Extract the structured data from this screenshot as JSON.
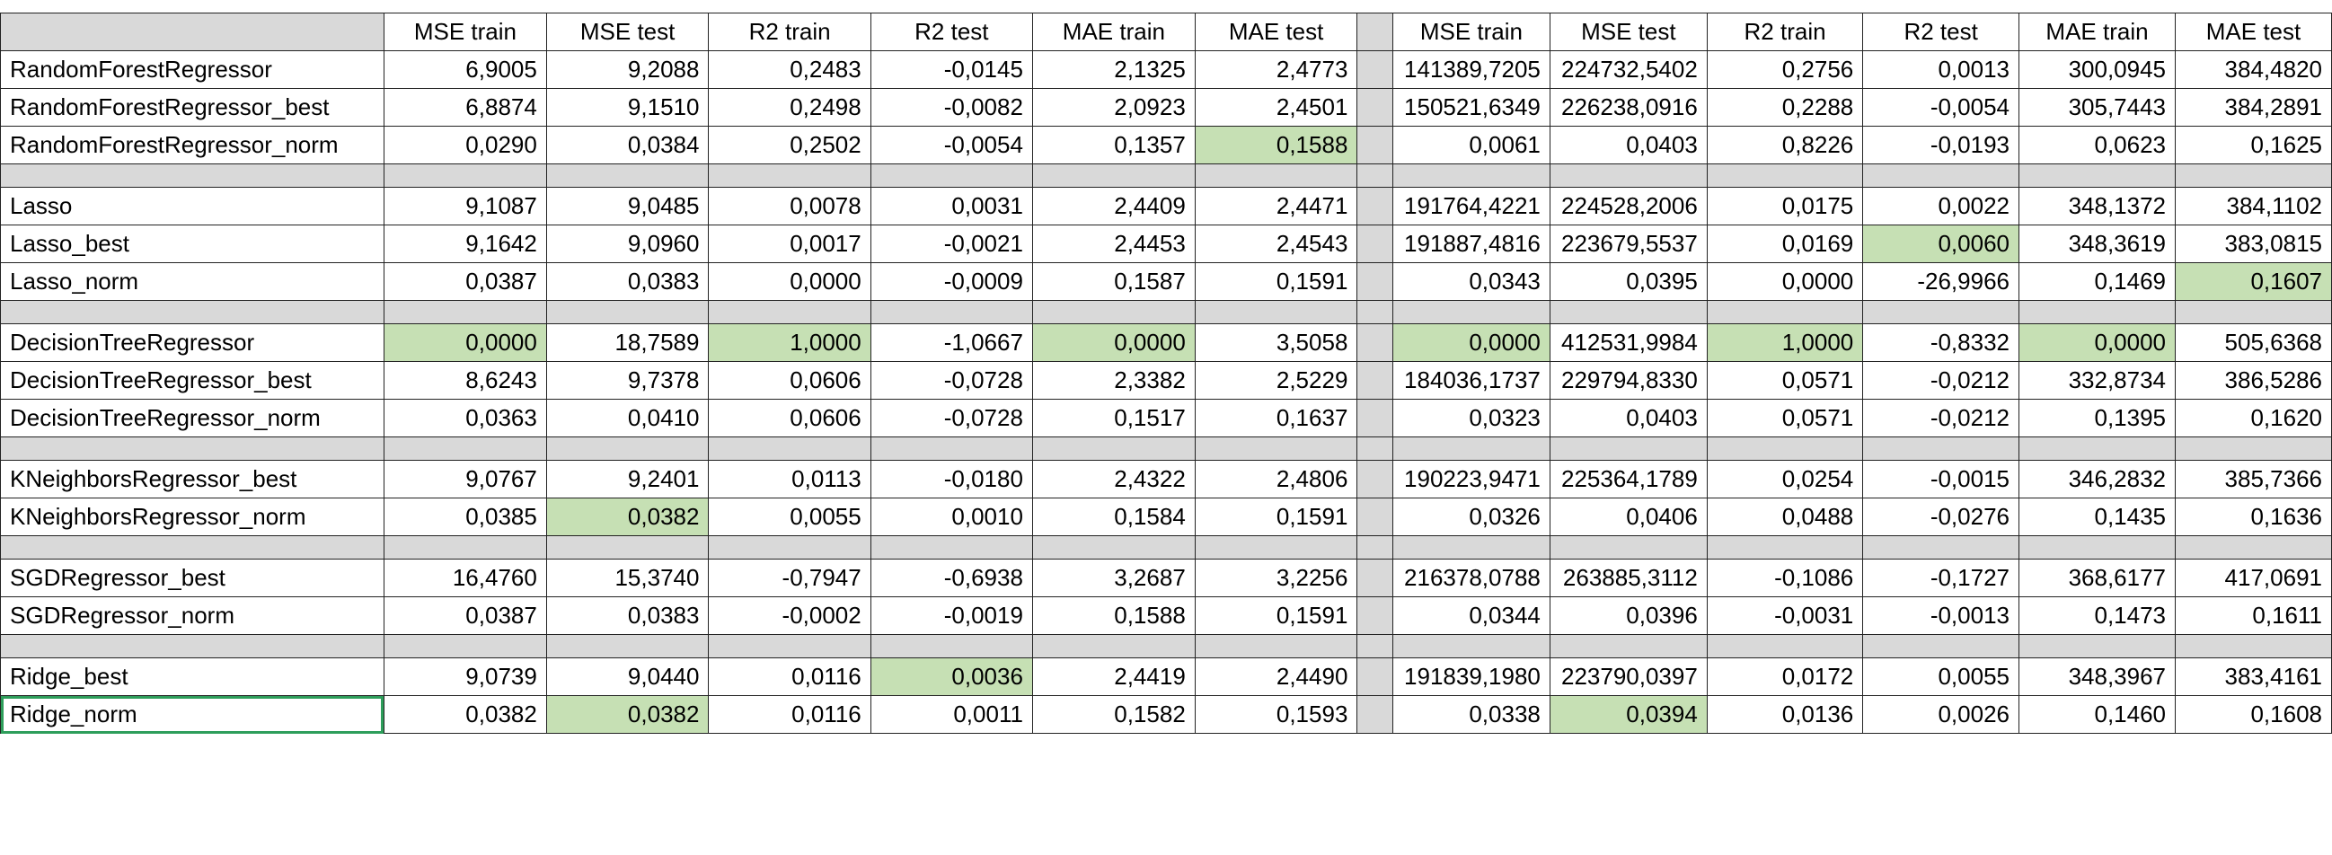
{
  "headers": {
    "left": [
      "MSE train",
      "MSE test",
      "R2 train",
      "R2 test",
      "MAE train",
      "MAE test"
    ],
    "right": [
      "MSE train",
      "MSE test",
      "R2 train",
      "R2 test",
      "MAE train",
      "MAE test"
    ]
  },
  "colors": {
    "highlight": "#c6e0b4",
    "separator": "#d9d9d9",
    "selection": "#2e9e5b"
  },
  "rows": [
    {
      "name": "RandomForestRegressor",
      "left": [
        "6,9005",
        "9,2088",
        "0,2483",
        "-0,0145",
        "2,1325",
        "2,4773"
      ],
      "right": [
        "141389,7205",
        "224732,5402",
        "0,2756",
        "0,0013",
        "300,0945",
        "384,4820"
      ],
      "hl_left": [],
      "hl_right": []
    },
    {
      "name": "RandomForestRegressor_best",
      "left": [
        "6,8874",
        "9,1510",
        "0,2498",
        "-0,0082",
        "2,0923",
        "2,4501"
      ],
      "right": [
        "150521,6349",
        "226238,0916",
        "0,2288",
        "-0,0054",
        "305,7443",
        "384,2891"
      ],
      "hl_left": [],
      "hl_right": []
    },
    {
      "name": "RandomForestRegressor_norm",
      "left": [
        "0,0290",
        "0,0384",
        "0,2502",
        "-0,0054",
        "0,1357",
        "0,1588"
      ],
      "right": [
        "0,0061",
        "0,0403",
        "0,8226",
        "-0,0193",
        "0,0623",
        "0,1625"
      ],
      "hl_left": [
        5
      ],
      "hl_right": []
    },
    {
      "separator": true
    },
    {
      "name": "Lasso",
      "left": [
        "9,1087",
        "9,0485",
        "0,0078",
        "0,0031",
        "2,4409",
        "2,4471"
      ],
      "right": [
        "191764,4221",
        "224528,2006",
        "0,0175",
        "0,0022",
        "348,1372",
        "384,1102"
      ],
      "hl_left": [],
      "hl_right": []
    },
    {
      "name": "Lasso_best",
      "left": [
        "9,1642",
        "9,0960",
        "0,0017",
        "-0,0021",
        "2,4453",
        "2,4543"
      ],
      "right": [
        "191887,4816",
        "223679,5537",
        "0,0169",
        "0,0060",
        "348,3619",
        "383,0815"
      ],
      "hl_left": [],
      "hl_right": [
        3
      ]
    },
    {
      "name": "Lasso_norm",
      "left": [
        "0,0387",
        "0,0383",
        "0,0000",
        "-0,0009",
        "0,1587",
        "0,1591"
      ],
      "right": [
        "0,0343",
        "0,0395",
        "0,0000",
        "-26,9966",
        "0,1469",
        "0,1607"
      ],
      "hl_left": [],
      "hl_right": [
        5
      ]
    },
    {
      "separator": true
    },
    {
      "name": "DecisionTreeRegressor",
      "left": [
        "0,0000",
        "18,7589",
        "1,0000",
        "-1,0667",
        "0,0000",
        "3,5058"
      ],
      "right": [
        "0,0000",
        "412531,9984",
        "1,0000",
        "-0,8332",
        "0,0000",
        "505,6368"
      ],
      "hl_left": [
        0,
        2,
        4
      ],
      "hl_right": [
        0,
        2,
        4
      ]
    },
    {
      "name": "DecisionTreeRegressor_best",
      "left": [
        "8,6243",
        "9,7378",
        "0,0606",
        "-0,0728",
        "2,3382",
        "2,5229"
      ],
      "right": [
        "184036,1737",
        "229794,8330",
        "0,0571",
        "-0,0212",
        "332,8734",
        "386,5286"
      ],
      "hl_left": [],
      "hl_right": []
    },
    {
      "name": "DecisionTreeRegressor_norm",
      "left": [
        "0,0363",
        "0,0410",
        "0,0606",
        "-0,0728",
        "0,1517",
        "0,1637"
      ],
      "right": [
        "0,0323",
        "0,0403",
        "0,0571",
        "-0,0212",
        "0,1395",
        "0,1620"
      ],
      "hl_left": [],
      "hl_right": []
    },
    {
      "separator": true
    },
    {
      "name": "KNeighborsRegressor_best",
      "left": [
        "9,0767",
        "9,2401",
        "0,0113",
        "-0,0180",
        "2,4322",
        "2,4806"
      ],
      "right": [
        "190223,9471",
        "225364,1789",
        "0,0254",
        "-0,0015",
        "346,2832",
        "385,7366"
      ],
      "hl_left": [],
      "hl_right": []
    },
    {
      "name": "KNeighborsRegressor_norm",
      "left": [
        "0,0385",
        "0,0382",
        "0,0055",
        "0,0010",
        "0,1584",
        "0,1591"
      ],
      "right": [
        "0,0326",
        "0,0406",
        "0,0488",
        "-0,0276",
        "0,1435",
        "0,1636"
      ],
      "hl_left": [
        1
      ],
      "hl_right": []
    },
    {
      "separator": true
    },
    {
      "name": "SGDRegressor_best",
      "left": [
        "16,4760",
        "15,3740",
        "-0,7947",
        "-0,6938",
        "3,2687",
        "3,2256"
      ],
      "right": [
        "216378,0788",
        "263885,3112",
        "-0,1086",
        "-0,1727",
        "368,6177",
        "417,0691"
      ],
      "hl_left": [],
      "hl_right": []
    },
    {
      "name": "SGDRegressor_norm",
      "left": [
        "0,0387",
        "0,0383",
        "-0,0002",
        "-0,0019",
        "0,1588",
        "0,1591"
      ],
      "right": [
        "0,0344",
        "0,0396",
        "-0,0031",
        "-0,0013",
        "0,1473",
        "0,1611"
      ],
      "hl_left": [],
      "hl_right": []
    },
    {
      "separator": true
    },
    {
      "name": "Ridge_best",
      "left": [
        "9,0739",
        "9,0440",
        "0,0116",
        "0,0036",
        "2,4419",
        "2,4490"
      ],
      "right": [
        "191839,1980",
        "223790,0397",
        "0,0172",
        "0,0055",
        "348,3967",
        "383,4161"
      ],
      "hl_left": [
        3
      ],
      "hl_right": []
    },
    {
      "name": "Ridge_norm",
      "left": [
        "0,0382",
        "0,0382",
        "0,0116",
        "0,0011",
        "0,1582",
        "0,1593"
      ],
      "right": [
        "0,0338",
        "0,0394",
        "0,0136",
        "0,0026",
        "0,1460",
        "0,1608"
      ],
      "hl_left": [
        1
      ],
      "hl_right": [
        1
      ],
      "selected": true
    }
  ]
}
